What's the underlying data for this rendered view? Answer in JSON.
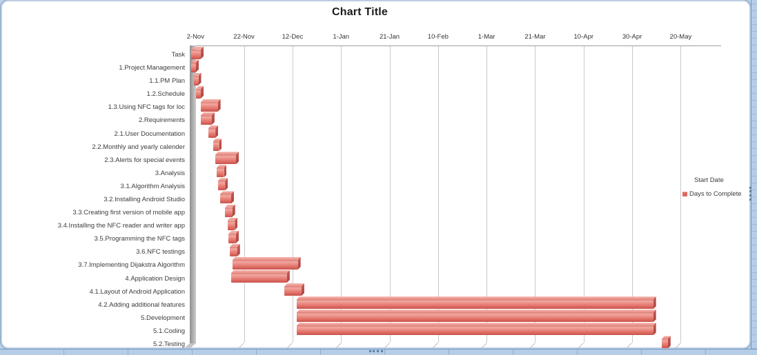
{
  "chart_data": {
    "type": "bar",
    "subtype": "3d-horizontal-gantt",
    "title": "Chart Title",
    "x_axis": {
      "position": "top",
      "unit": "date",
      "interval_days": 20,
      "tick_labels": [
        "2-Nov",
        "22-Nov",
        "12-Dec",
        "1-Jan",
        "21-Jan",
        "10-Feb",
        "1-Mar",
        "21-Mar",
        "10-Apr",
        "30-Apr",
        "20-May"
      ]
    },
    "categories": [
      "Task",
      "1.Project Management",
      "1.1.PM Plan",
      "1.2.Schedule",
      "1.3.Using NFC tags for loc",
      "2.Requirements",
      "2.1.User Documentation",
      "2.2.Monthly and yearly calender",
      "2.3.Alerts for special events",
      "3.Analysis",
      "3.1.Algorithm Analysis",
      "3.2.Installing Android Studio",
      "3.3.Creating first version of mobile app",
      "3.4.Installing the NFC reader and writer app",
      "3.5.Programming the NFC tags",
      "3.6.NFC testings",
      "3.7.Implementing Dijakstra Algorithm",
      "4.Application Design",
      "4.1.Layout of Android Application",
      "4.2.Adding additional features",
      "5.Development",
      "5.1.Coding",
      "5.2.Testing"
    ],
    "series": [
      {
        "name": "Start Date",
        "hidden": true,
        "values_days_from_2nov": [
          0,
          0,
          1,
          2,
          4,
          4,
          7,
          9,
          10,
          10.5,
          11,
          12,
          14,
          15,
          15.5,
          16,
          17,
          16.5,
          38.5,
          43.5,
          43.5,
          43.5,
          194
        ]
      },
      {
        "name": "Days to Complete",
        "color": "#e2756c",
        "values_days": [
          4,
          2,
          2,
          2,
          7,
          4.5,
          3,
          2.5,
          8.5,
          3,
          3,
          4.5,
          3,
          3,
          3,
          3,
          27,
          23,
          7,
          147,
          147,
          147,
          2.5
        ]
      }
    ],
    "legend": {
      "position": "right",
      "entries": [
        "Start Date",
        "Days to Complete"
      ]
    },
    "grid": true,
    "colors": {
      "bar_face": "#e8867e",
      "bar_face_light": "#f2a79f",
      "bar_face_dark": "#c5534c",
      "bar_side": "#b04a45",
      "wall": "#b2b2b2",
      "gridline": "#c9c9c9",
      "axis_line": "#9b9b9b",
      "sheet_blue": "#b6cde7"
    }
  }
}
